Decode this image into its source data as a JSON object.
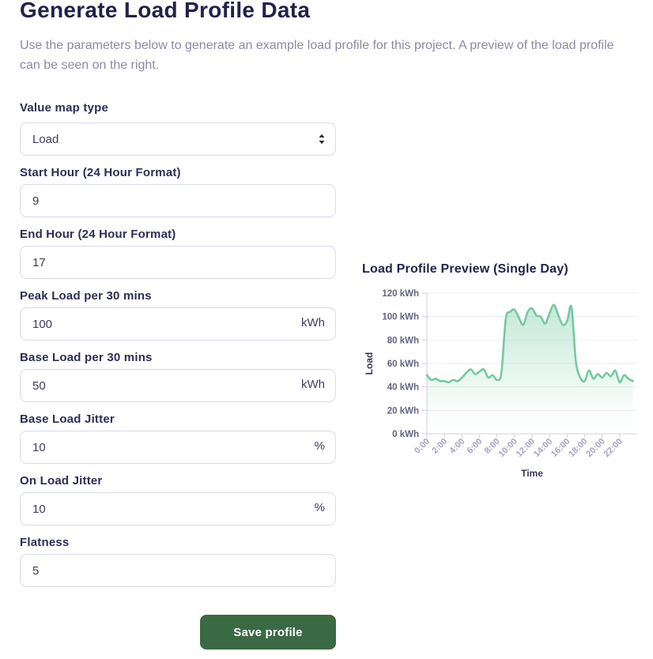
{
  "page": {
    "title": "Generate Load Profile Data",
    "description": "Use the parameters below to generate an example load profile for this project. A preview of the load profile can be seen on the right."
  },
  "form": {
    "fields": [
      {
        "label": "Value map type",
        "value": "Load",
        "suffix": ""
      },
      {
        "label": "Start Hour (24 Hour Format)",
        "value": "9",
        "suffix": ""
      },
      {
        "label": "End Hour (24 Hour Format)",
        "value": "17",
        "suffix": ""
      },
      {
        "label": "Peak Load per 30 mins",
        "value": "100",
        "suffix": "kWh"
      },
      {
        "label": "Base Load per 30 mins",
        "value": "50",
        "suffix": "kWh"
      },
      {
        "label": "Base Load Jitter",
        "value": "10",
        "suffix": "%"
      },
      {
        "label": "On Load Jitter",
        "value": "10",
        "suffix": "%"
      },
      {
        "label": "Flatness",
        "value": "5",
        "suffix": ""
      }
    ],
    "save_label": "Save profile"
  },
  "chart_data": {
    "type": "area",
    "title": "Load Profile Preview (Single Day)",
    "xlabel": "Time",
    "ylabel": "Load",
    "ylim": [
      0,
      120
    ],
    "grid": true,
    "legend": false,
    "y_ticks": [
      0,
      20,
      40,
      60,
      80,
      100,
      120
    ],
    "y_tick_labels": [
      "0 kWh",
      "20 kWh",
      "40 kWh",
      "60 kWh",
      "80 kWh",
      "100 kWh",
      "120 kWh"
    ],
    "x_tick_hours": [
      0,
      2,
      4,
      6,
      8,
      10,
      12,
      14,
      16,
      18,
      20,
      22
    ],
    "x_tick_labels": [
      "0:00",
      "2:00",
      "4:00",
      "6:00",
      "8:00",
      "10:00",
      "12:00",
      "14:00",
      "16:00",
      "18:00",
      "20:00",
      "22:00"
    ],
    "x_start_hour": 0,
    "x_step_hours": 0.5,
    "series": [
      {
        "name": "Load",
        "values": [
          50,
          46,
          47,
          45,
          45,
          44,
          46,
          45,
          48,
          52,
          55,
          51,
          53,
          55,
          48,
          50,
          46,
          52,
          98,
          104,
          106,
          99,
          93,
          104,
          107,
          101,
          100,
          94,
          103,
          110,
          101,
          93,
          96,
          108,
          62,
          48,
          45,
          54,
          47,
          51,
          48,
          52,
          49,
          54,
          44,
          50,
          47,
          45
        ]
      }
    ],
    "line_color": "#74c9a1",
    "fill_color": "#74c9a1"
  },
  "colors": {
    "heading": "#22224a",
    "label": "#2d2d58",
    "muted_text": "#8b8aa3",
    "input_border": "#d7dbe7",
    "button_green": "#3a6a43",
    "chart_line": "#74c9a1"
  }
}
